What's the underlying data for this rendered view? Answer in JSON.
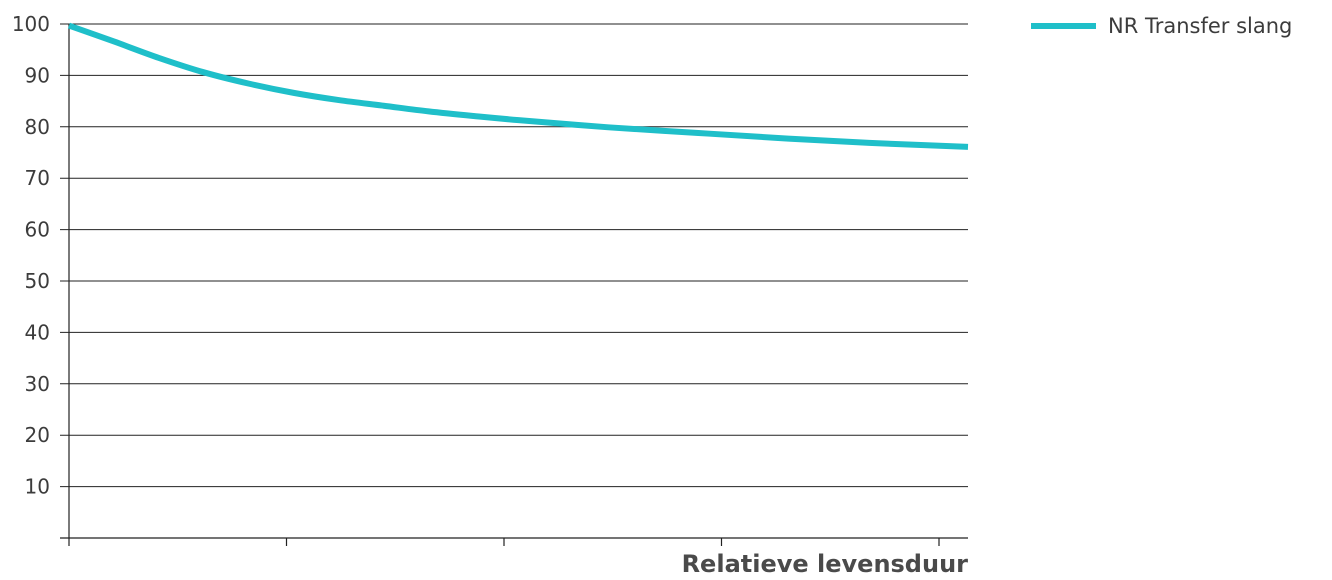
{
  "chart_data": {
    "type": "line",
    "title": "",
    "xlabel": "Relatieve levensduur",
    "ylabel": "",
    "ylim": [
      0,
      100
    ],
    "yticks": [
      10,
      20,
      30,
      40,
      50,
      60,
      70,
      80,
      90,
      100
    ],
    "xlim": [
      0,
      1
    ],
    "x_tick_count": 5,
    "grid": true,
    "legend_position": "top-right",
    "series": [
      {
        "name": "NR Transfer slang",
        "color": "#1fbfc9",
        "x": [
          0,
          0.05,
          0.1,
          0.15,
          0.2,
          0.25,
          0.3,
          0.35,
          0.4,
          0.45,
          0.5,
          0.6,
          0.7,
          0.8,
          0.9,
          1.0
        ],
        "y": [
          99.7,
          96.6,
          93.4,
          90.6,
          88.4,
          86.6,
          85.2,
          84.1,
          83.0,
          82.1,
          81.3,
          79.9,
          78.8,
          77.7,
          76.8,
          76.1
        ]
      }
    ]
  }
}
